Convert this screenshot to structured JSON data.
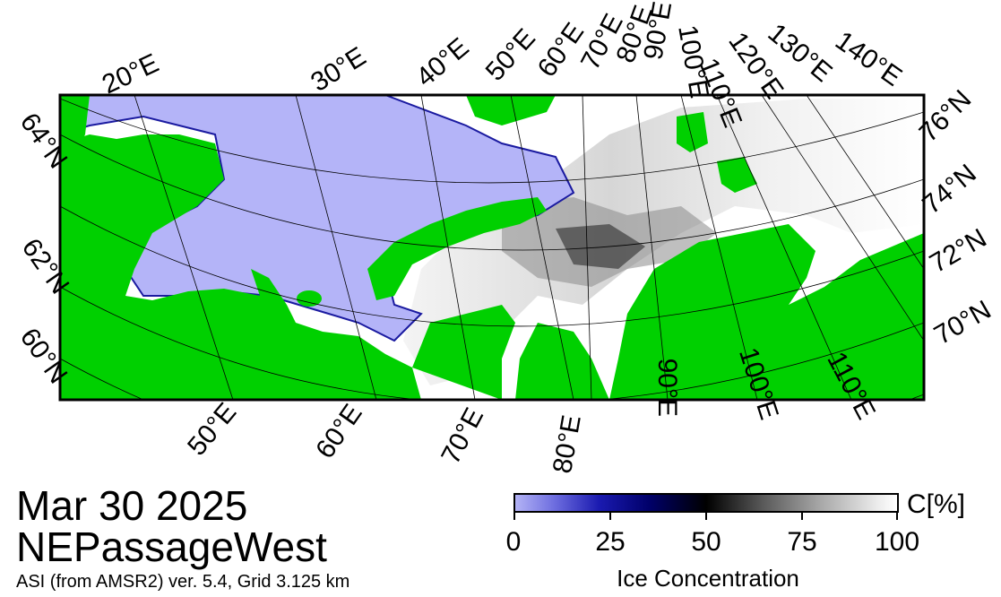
{
  "date": "Mar 30 2025",
  "region": "NEPassageWest",
  "source": "ASI (from AMSR2) ver. 5.4,  Grid 3.125 km",
  "colorbar": {
    "unit": "C[%]",
    "title": "Ice Concentration",
    "ticks": [
      "0",
      "25",
      "50",
      "75",
      "100"
    ]
  },
  "longitude_labels_top": [
    "20°E",
    "30°E",
    "40°E",
    "50°E",
    "60°E",
    "70°E",
    "80°E",
    "90°E",
    "100°E",
    "110°E",
    "120°E",
    "130°E",
    "140°E"
  ],
  "longitude_labels_bottom": [
    "50°E",
    "60°E",
    "70°E",
    "80°E",
    "90°E",
    "100°E",
    "110°E"
  ],
  "latitude_labels_left": [
    "64°N",
    "62°N",
    "60°N"
  ],
  "latitude_labels_right": [
    "76°N",
    "74°N",
    "72°N",
    "70°N"
  ],
  "colors": {
    "land": "#00d000",
    "open_water": "#b4b4f8",
    "coast_edge": "#1a1aa0",
    "ice": "#ffffff",
    "frame": "#000000"
  }
}
